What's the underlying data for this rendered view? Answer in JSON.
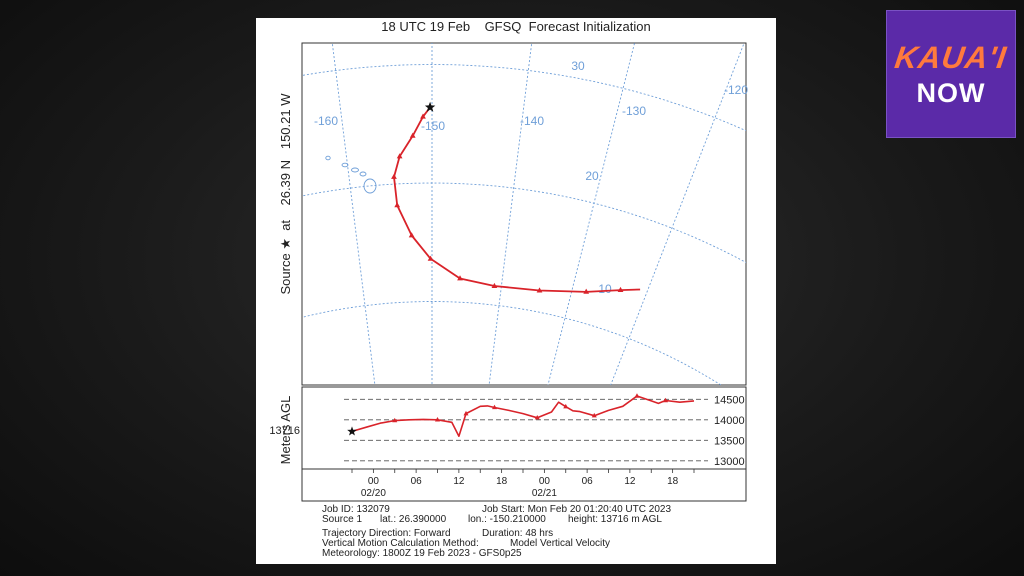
{
  "logo": {
    "line1": "KAUA'I",
    "line2": "NOW"
  },
  "chart_data": {
    "type": "line",
    "title": "18 UTC 19 Feb    GFSQ  Forecast Initialization",
    "source_label": "Source ★  at    26.39 N   150.21 W",
    "map": {
      "lon_labels": [
        "-160",
        "-150",
        "-140",
        "-130",
        "-120"
      ],
      "lat_labels": [
        "30",
        "20",
        "10"
      ],
      "trajectory_lonlat": [
        [
          -150.21,
          26.39
        ],
        [
          -151.0,
          25.6
        ],
        [
          -152.2,
          24.0
        ],
        [
          -153.8,
          22.3
        ],
        [
          -154.6,
          20.6
        ],
        [
          -154.4,
          18.2
        ],
        [
          -152.7,
          15.6
        ],
        [
          -150.2,
          13.6
        ],
        [
          -146.0,
          12.0
        ],
        [
          -141.0,
          11.6
        ],
        [
          -134.5,
          11.8
        ],
        [
          -128.0,
          12.6
        ],
        [
          -123.5,
          13.6
        ],
        [
          -121.0,
          14.2
        ]
      ]
    },
    "height_panel": {
      "ylabel": "Meters AGL",
      "source_height_label": "13716",
      "yticks": [
        "14500",
        "14000",
        "13500",
        "13000"
      ],
      "ylim": [
        12800,
        14800
      ],
      "xticks": [
        "00",
        "06",
        "12",
        "18",
        "00",
        "06",
        "12",
        "18"
      ],
      "date_labels": [
        "02/20",
        "02/21"
      ],
      "hours": [
        0,
        2,
        4,
        6,
        8,
        10,
        12,
        14,
        15,
        16,
        18,
        19,
        20,
        22,
        24,
        26,
        28,
        29,
        30,
        31,
        32,
        34,
        36,
        38,
        40,
        42,
        43,
        44,
        46,
        48
      ],
      "heights": [
        13716,
        13820,
        13920,
        13980,
        14000,
        14010,
        14000,
        13940,
        13600,
        14150,
        14330,
        14340,
        14300,
        14230,
        14150,
        14050,
        14190,
        14430,
        14320,
        14220,
        14200,
        14100,
        14230,
        14330,
        14580,
        14460,
        14400,
        14470,
        14430,
        14460
      ]
    },
    "info": {
      "line1a": "Job ID: 132079",
      "line1b": "Job Start: Mon Feb 20 01:20:40 UTC 2023",
      "line2a": "Source 1",
      "line2b": "lat.: 26.390000",
      "line2c": "lon.: -150.210000",
      "line2d": "height: 13716 m AGL",
      "line3a": "Trajectory Direction: Forward",
      "line3b": "Duration: 48 hrs",
      "line4a": "Vertical Motion Calculation Method:",
      "line4b": "Model Vertical Velocity",
      "line5": "Meteorology: 1800Z 19 Feb 2023 - GFS0p25"
    }
  }
}
